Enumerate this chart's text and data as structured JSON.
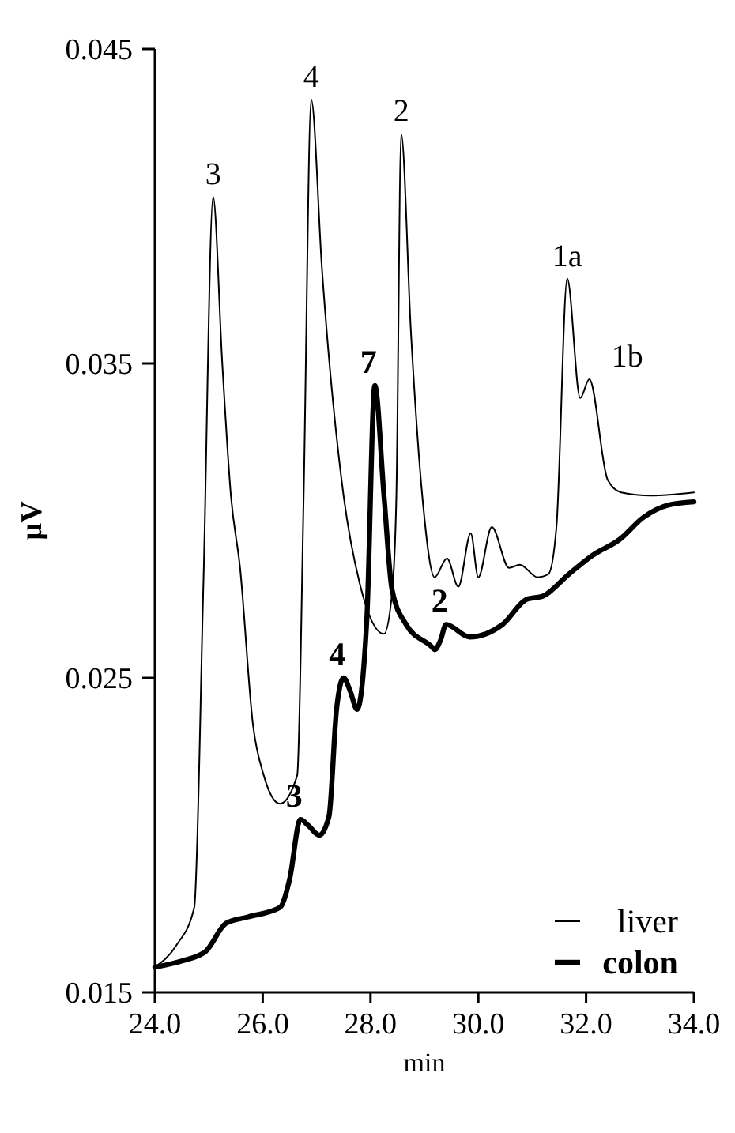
{
  "chart_data": {
    "type": "line",
    "xlabel": "min",
    "ylabel": "µV",
    "xlim": [
      24,
      34
    ],
    "xticks": [
      {
        "value": 24,
        "label": "24.0"
      },
      {
        "value": 26,
        "label": "26.0"
      },
      {
        "value": 28,
        "label": "28.0"
      },
      {
        "value": 30,
        "label": "30.0"
      },
      {
        "value": 32,
        "label": "32.0"
      },
      {
        "value": 34,
        "label": "34.0"
      }
    ],
    "ylim": [
      0.015,
      0.045
    ],
    "yticks": [
      0.015,
      0.025,
      0.035,
      0.045
    ],
    "legend": "bottom right",
    "grid": false,
    "marker": "none",
    "line_style": "solid",
    "series": [
      {
        "name": "liver",
        "color": "#000000",
        "x": [
          24,
          24.4,
          24.73,
          24.9,
          25.08,
          25.25,
          25.41,
          25.58,
          25.82,
          26.02,
          26.32,
          26.64,
          26.76,
          26.9,
          27.1,
          27.5,
          27.8,
          28.25,
          28.4,
          28.48,
          28.57,
          28.75,
          28.96,
          29.19,
          29.42,
          29.63,
          29.86,
          30,
          30.25,
          30.57,
          30.77,
          31.1,
          31.3,
          31.45,
          31.65,
          31.89,
          32.06,
          32.4,
          32.65,
          33.2,
          34
        ],
        "values": [
          0.0158,
          0.0165,
          0.0177,
          0.028,
          0.0403,
          0.035,
          0.0308,
          0.0285,
          0.0235,
          0.0219,
          0.021,
          0.0219,
          0.0308,
          0.0434,
          0.038,
          0.0308,
          0.028,
          0.0264,
          0.0277,
          0.0308,
          0.0423,
          0.036,
          0.0308,
          0.0282,
          0.0288,
          0.0279,
          0.0296,
          0.0282,
          0.0298,
          0.0285,
          0.0286,
          0.0282,
          0.0283,
          0.0298,
          0.0377,
          0.0339,
          0.0345,
          0.0313,
          0.0309,
          0.0308,
          0.0309
        ]
      },
      {
        "name": "colon",
        "color": "#000000",
        "x": [
          24,
          24.5,
          24.94,
          25.32,
          25.73,
          26.32,
          26.5,
          26.7,
          26.85,
          27.05,
          27.23,
          27.37,
          27.5,
          27.62,
          27.75,
          27.93,
          28.08,
          28.25,
          28.4,
          28.66,
          29.13,
          29.19,
          29.3,
          29.4,
          29.84,
          30.45,
          30.9,
          31.2,
          31.68,
          32.12,
          32.62,
          33.06,
          33.53,
          34
        ],
        "values": [
          0.0158,
          0.016,
          0.0163,
          0.0172,
          0.0174,
          0.0177,
          0.0186,
          0.0205,
          0.0203,
          0.02,
          0.0206,
          0.024,
          0.025,
          0.0246,
          0.024,
          0.0268,
          0.0343,
          0.0308,
          0.0278,
          0.0267,
          0.026,
          0.0259,
          0.0262,
          0.0267,
          0.0263,
          0.0267,
          0.0275,
          0.0276,
          0.0283,
          0.0289,
          0.0294,
          0.0301,
          0.0305,
          0.0306
        ]
      }
    ],
    "annotations": [
      {
        "text": "3",
        "x": 25.08,
        "y": 0.0403
      },
      {
        "text": "4",
        "x": 26.9,
        "y": 0.0434
      },
      {
        "text": "2",
        "x": 28.57,
        "y": 0.0423
      },
      {
        "text": "1a",
        "x": 31.65,
        "y": 0.0377
      },
      {
        "text": "1b",
        "x": 32.06,
        "y": 0.0345
      },
      {
        "text": "3",
        "x": 26.7,
        "y": 0.0205
      },
      {
        "text": "4",
        "x": 27.5,
        "y": 0.025
      },
      {
        "text": "7",
        "x": 28.08,
        "y": 0.0343
      },
      {
        "text": "2",
        "x": 29.4,
        "y": 0.0267
      }
    ]
  }
}
